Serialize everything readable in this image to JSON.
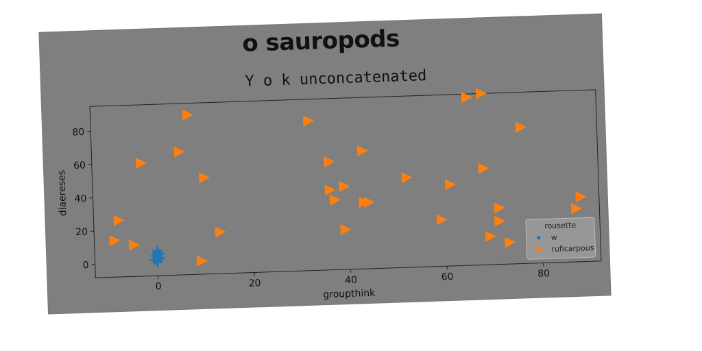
{
  "chart_data": {
    "type": "scatter",
    "title": "o sauropods",
    "subtitle": "Y o k unconcatenated",
    "xlabel": "groupthink",
    "ylabel": "diaereses",
    "xlim": [
      -13,
      92
    ],
    "ylim": [
      -8,
      95
    ],
    "xticks": [
      0,
      20,
      40,
      60,
      80
    ],
    "yticks": [
      0,
      20,
      40,
      60,
      80
    ],
    "grid": false,
    "legend": {
      "title": "rousette",
      "placement": "lower-right"
    },
    "series": [
      {
        "name": "w",
        "marker": "plus",
        "color": "#1f77b4",
        "points": [
          [
            0,
            0
          ],
          [
            0,
            1
          ],
          [
            0,
            2
          ],
          [
            0,
            3
          ],
          [
            0,
            4
          ],
          [
            0,
            5
          ],
          [
            0,
            6
          ],
          [
            -0.5,
            1.5
          ],
          [
            0.5,
            2.5
          ],
          [
            -0.4,
            4
          ],
          [
            0.4,
            5
          ],
          [
            0,
            7
          ]
        ]
      },
      {
        "name": "ruficarpous",
        "marker": "triangle-right",
        "color": "#ff7f0e",
        "points": [
          [
            7,
            88
          ],
          [
            32,
            82
          ],
          [
            65,
            93
          ],
          [
            68,
            95
          ],
          [
            76,
            74
          ],
          [
            5,
            66
          ],
          [
            -3,
            60
          ],
          [
            36,
            57
          ],
          [
            43,
            63
          ],
          [
            10,
            50
          ],
          [
            52,
            46
          ],
          [
            61,
            41
          ],
          [
            68,
            50
          ],
          [
            36,
            40
          ],
          [
            39,
            42
          ],
          [
            37,
            34
          ],
          [
            43,
            32
          ],
          [
            44,
            32
          ],
          [
            -8,
            26
          ],
          [
            59,
            20
          ],
          [
            71,
            26
          ],
          [
            71,
            18
          ],
          [
            88,
            31
          ],
          [
            87,
            24
          ],
          [
            13,
            17
          ],
          [
            39,
            16
          ],
          [
            -9,
            14
          ],
          [
            -5,
            11
          ],
          [
            69,
            9
          ],
          [
            73,
            5
          ],
          [
            9,
            0
          ]
        ]
      }
    ]
  }
}
